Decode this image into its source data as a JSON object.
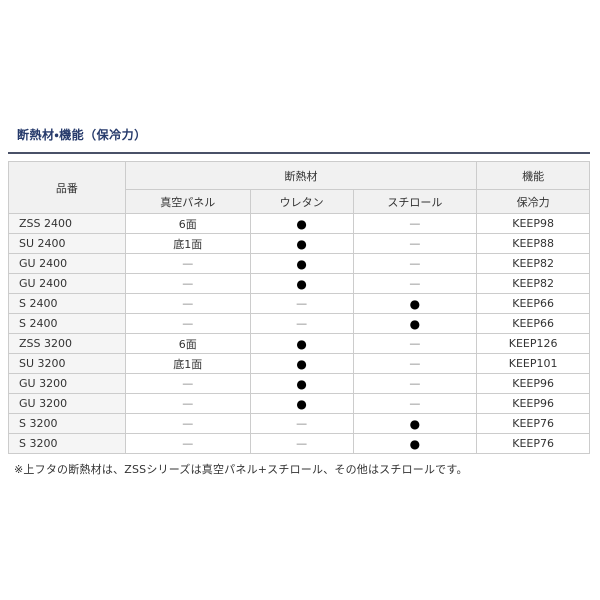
{
  "page": {
    "title": "断熱材・機能（保冷力）",
    "footnote": "※上フタの断熱材は、ZSSシリーズは真空パネル+スチロール、その他はスチロールです。"
  },
  "table": {
    "headers": {
      "product": "品番",
      "insulation_group": "断熱材",
      "function_group": "機能",
      "vacuum_panel": "真空パネル",
      "urethane": "ウレタン",
      "styrofoam": "スチロール",
      "cooling_power": "保冷力"
    },
    "marks": {
      "present": "●",
      "absent": "—"
    },
    "rows": [
      {
        "product": "ZSS 2400",
        "vacuum": "6面",
        "urethane": "●",
        "styrofoam": "—",
        "cooling": "KEEP98"
      },
      {
        "product": "SU 2400",
        "vacuum": "底1面",
        "urethane": "●",
        "styrofoam": "—",
        "cooling": "KEEP88"
      },
      {
        "product": "GU 2400",
        "vacuum": "—",
        "urethane": "●",
        "styrofoam": "—",
        "cooling": "KEEP82"
      },
      {
        "product": "GU 2400",
        "vacuum": "—",
        "urethane": "●",
        "styrofoam": "—",
        "cooling": "KEEP82"
      },
      {
        "product": "S 2400",
        "vacuum": "—",
        "urethane": "—",
        "styrofoam": "●",
        "cooling": "KEEP66"
      },
      {
        "product": "S 2400",
        "vacuum": "—",
        "urethane": "—",
        "styrofoam": "●",
        "cooling": "KEEP66"
      },
      {
        "product": "ZSS 3200",
        "vacuum": "6面",
        "urethane": "●",
        "styrofoam": "—",
        "cooling": "KEEP126"
      },
      {
        "product": "SU 3200",
        "vacuum": "底1面",
        "urethane": "●",
        "styrofoam": "—",
        "cooling": "KEEP101"
      },
      {
        "product": "GU 3200",
        "vacuum": "—",
        "urethane": "●",
        "styrofoam": "—",
        "cooling": "KEEP96"
      },
      {
        "product": "GU 3200",
        "vacuum": "—",
        "urethane": "●",
        "styrofoam": "—",
        "cooling": "KEEP96"
      },
      {
        "product": "S 3200",
        "vacuum": "—",
        "urethane": "—",
        "styrofoam": "●",
        "cooling": "KEEP76"
      },
      {
        "product": "S 3200",
        "vacuum": "—",
        "urethane": "—",
        "styrofoam": "●",
        "cooling": "KEEP76"
      }
    ]
  },
  "colors": {
    "title_text": "#263a6b",
    "title_rule": "#4a5168",
    "table_border": "#cccccc",
    "header_bg": "#f1f1f1",
    "product_col_bg": "#f5f5f5",
    "body_text": "#333333",
    "dash": "#808080",
    "bullet": "#000000"
  }
}
